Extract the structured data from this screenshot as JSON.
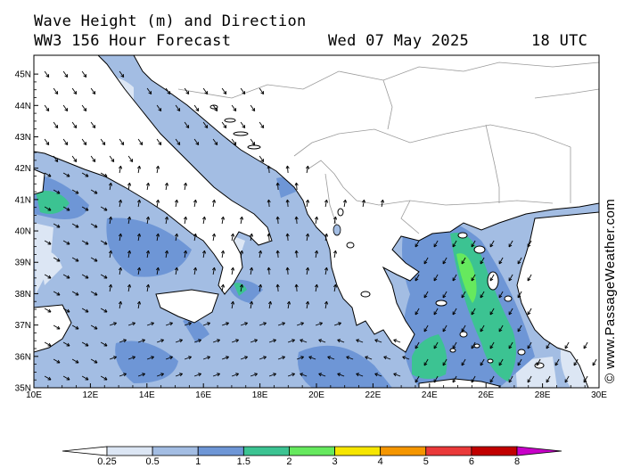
{
  "header": {
    "title": "Wave Height (m) and Direction",
    "model": "WW3 156 Hour Forecast",
    "date": "Wed 07 May 2025",
    "time": "18 UTC"
  },
  "credit": "© www.PassageWeather.com",
  "axes": {
    "lon_labels": [
      "10E",
      "12E",
      "14E",
      "16E",
      "18E",
      "20E",
      "22E",
      "24E",
      "26E",
      "28E",
      "30E"
    ],
    "lat_labels": [
      "45N",
      "44N",
      "43N",
      "42N",
      "41N",
      "40N",
      "39N",
      "38N",
      "37N",
      "36N",
      "35N"
    ],
    "lon_range": [
      10,
      30
    ],
    "lat_range": [
      35,
      45.6
    ]
  },
  "legend": {
    "labels": [
      "0.25",
      "0.5",
      "1",
      "1.5",
      "2",
      "3",
      "4",
      "5",
      "6",
      "8"
    ],
    "colors": [
      "#ffffff",
      "#dce6f4",
      "#a3bde3",
      "#6e96d6",
      "#3cc392",
      "#66e95e",
      "#f6e600",
      "#f59600",
      "#ea3a3a",
      "#c10000",
      "#c800c8"
    ]
  },
  "colors": {
    "sea_low": "#dce6f4",
    "sea_mid": "#a3bde3",
    "sea_high": "#6e96d6",
    "wave_2m": "#3cc392",
    "wave_3m": "#66e95e",
    "land": "#ffffff",
    "border": "#9a9a9a"
  }
}
